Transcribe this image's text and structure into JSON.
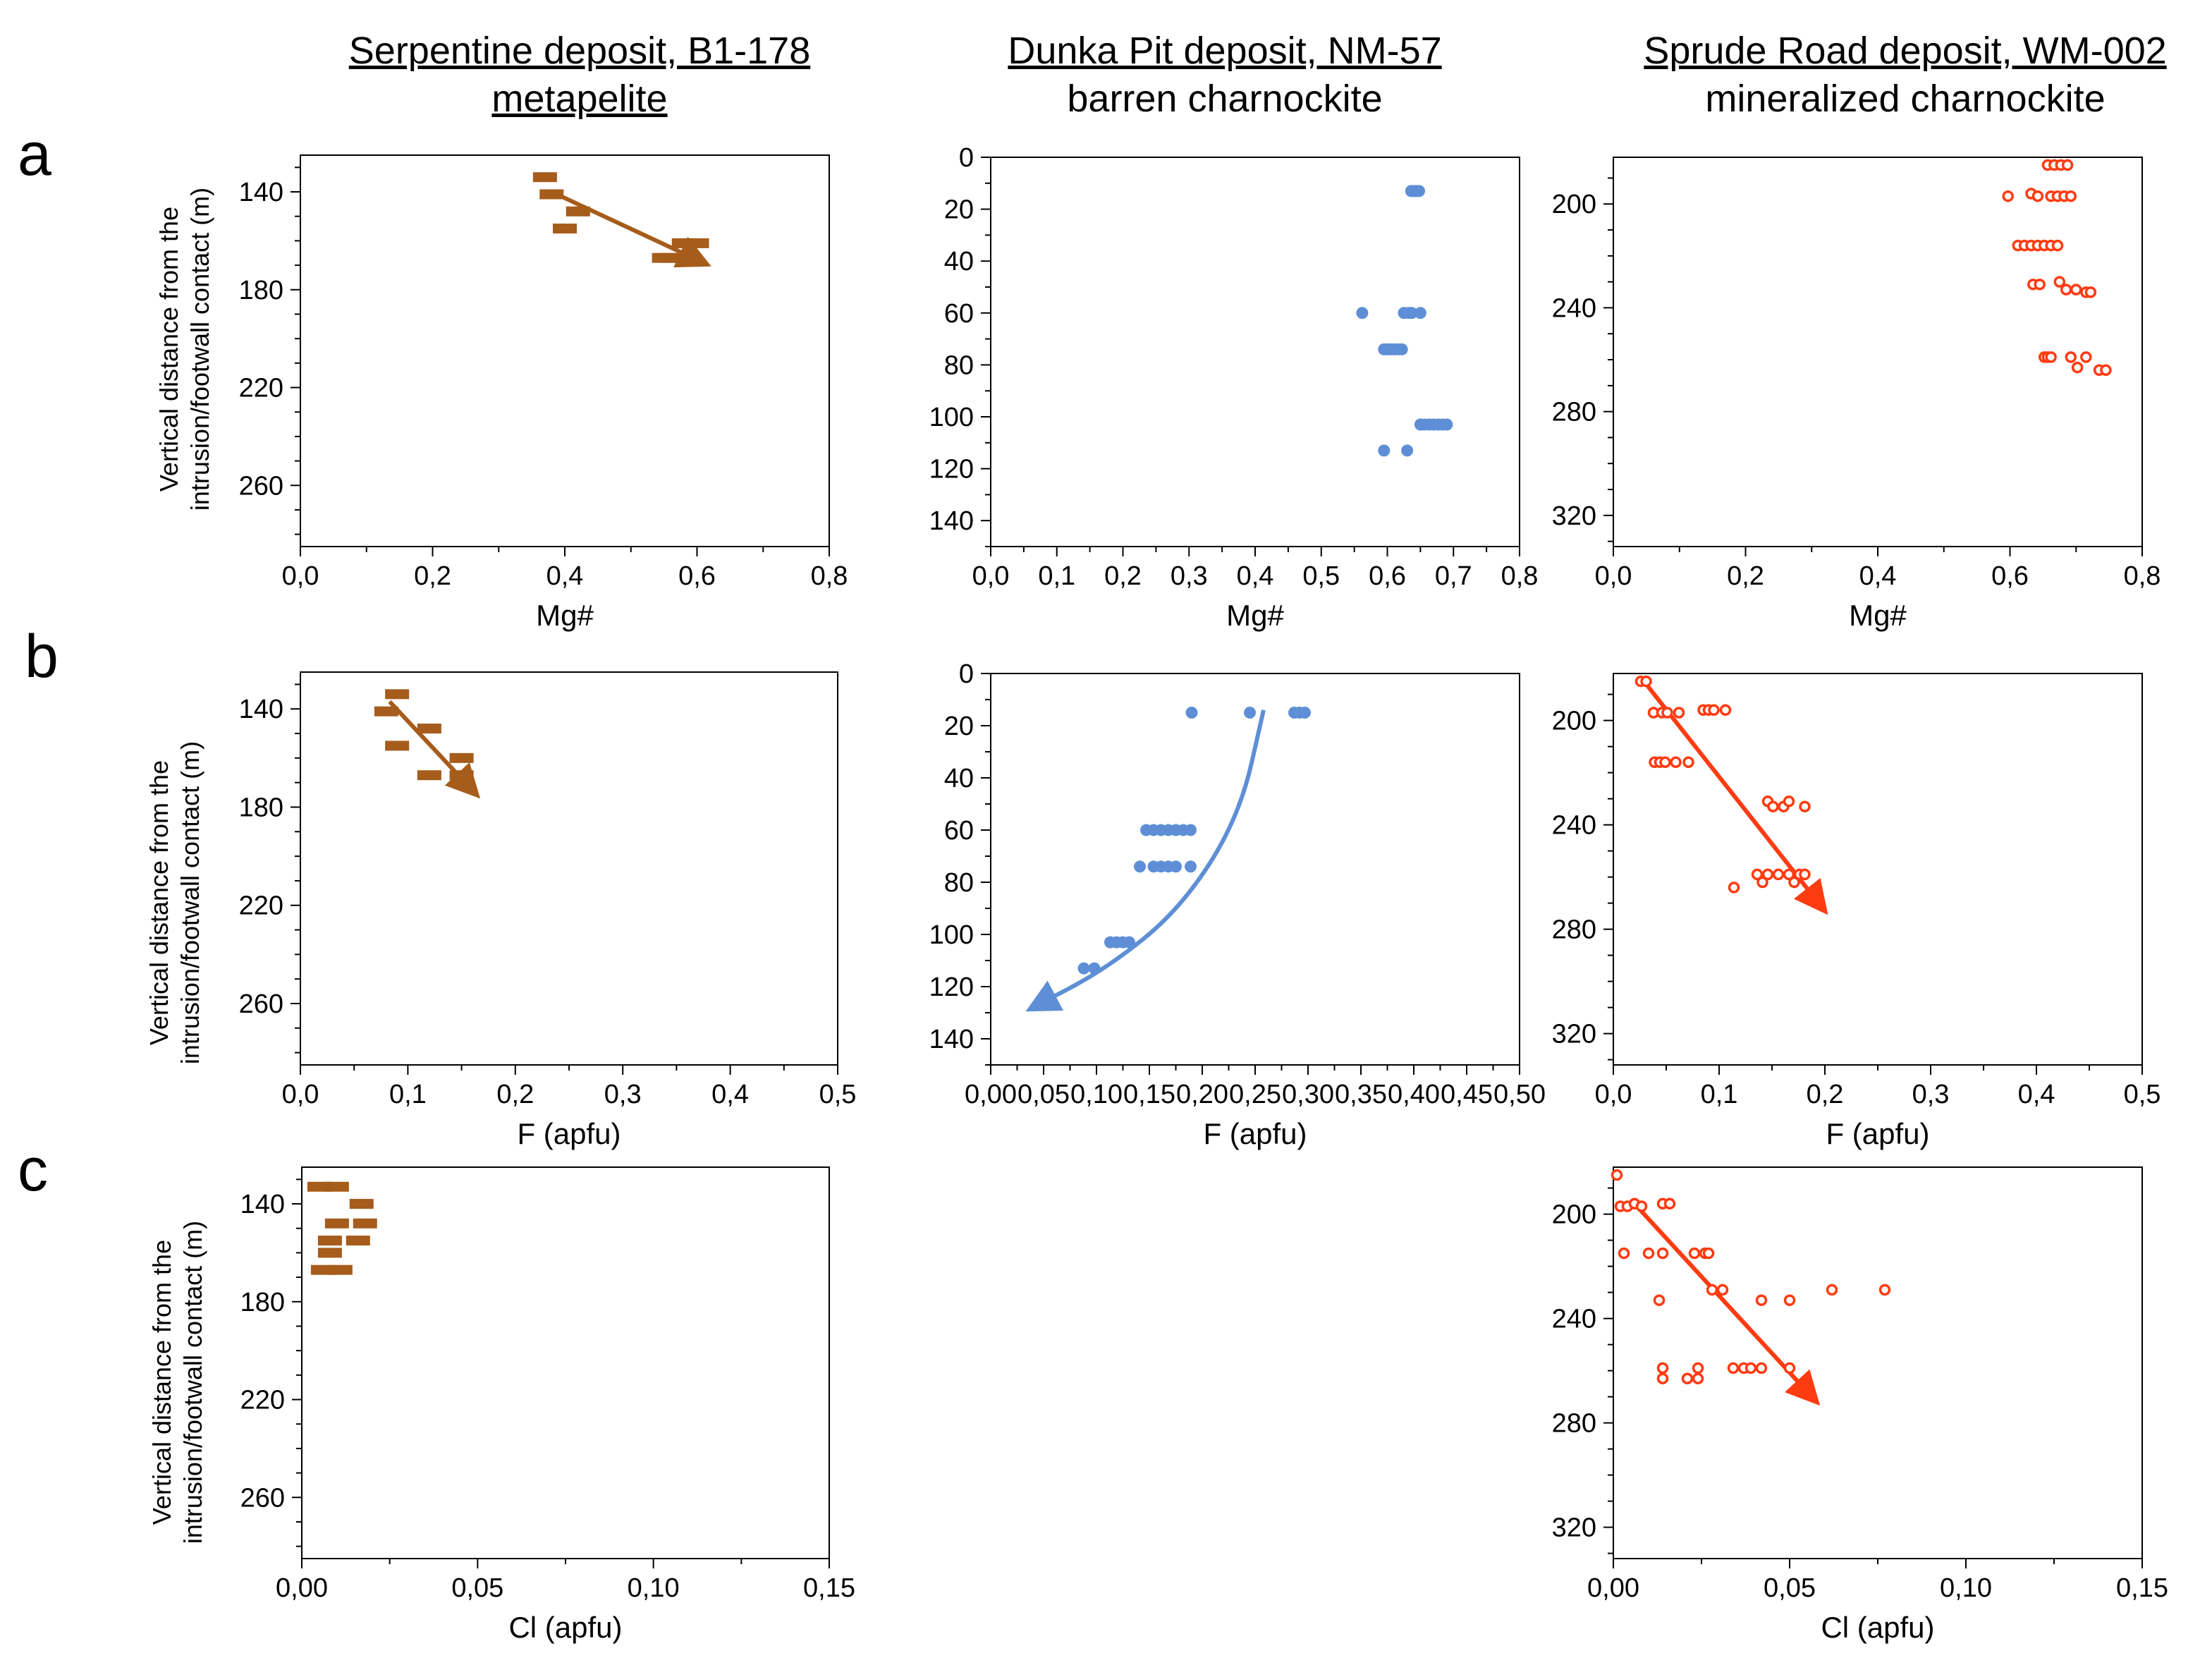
{
  "columns": [
    {
      "title": "Serpentine deposit, B1-178",
      "subtitle": "metapelite"
    },
    {
      "title": "Dunka Pit deposit, NM-57",
      "subtitle": "barren charnockite"
    },
    {
      "title": "Sprude Road deposit, WM-002",
      "subtitle": "mineralized charnockite"
    }
  ],
  "rows": [
    "a",
    "b",
    "c"
  ],
  "ylabel_line1": "Vertical distance from the",
  "ylabel_line2": "intrusion/footwall contact (m)",
  "colors": {
    "serpentine": "#a65c1a",
    "dunka": "#5e8fd6",
    "sprude": "#ff3b12"
  },
  "chart_data": [
    {
      "id": "a1",
      "type": "scatter",
      "marker": "bar",
      "color": "#a65c1a",
      "xlabel": "Mg#",
      "xlim": [
        0,
        0.8
      ],
      "ylim": [
        125,
        285
      ],
      "y_inverted": true,
      "xticks": [
        0,
        0.2,
        0.4,
        0.6,
        0.8
      ],
      "xticklabels": [
        "0,0",
        "0,2",
        "0,4",
        "0,6",
        "0,8"
      ],
      "yticks": [
        140,
        180,
        220,
        260
      ],
      "yticklabels": [
        "140",
        "180",
        "220",
        "260"
      ],
      "points": [
        [
          0.37,
          134
        ],
        [
          0.38,
          141
        ],
        [
          0.42,
          148
        ],
        [
          0.4,
          155
        ],
        [
          0.58,
          161
        ],
        [
          0.6,
          161
        ],
        [
          0.55,
          167
        ],
        [
          0.56,
          167
        ]
      ],
      "trend": {
        "kind": "arrow",
        "from": [
          0.38,
          140
        ],
        "to": [
          0.61,
          169
        ]
      }
    },
    {
      "id": "a2",
      "type": "scatter",
      "marker": "dot",
      "color": "#5e8fd6",
      "xlabel": "Mg#",
      "xlim": [
        0,
        0.8
      ],
      "ylim": [
        0,
        150
      ],
      "y_inverted": true,
      "xticks": [
        0,
        0.1,
        0.2,
        0.3,
        0.4,
        0.5,
        0.6,
        0.7,
        0.8
      ],
      "xticklabels": [
        "0,0",
        "0,1",
        "0,2",
        "0,3",
        "0,4",
        "0,5",
        "0,6",
        "0,7",
        "0,8"
      ],
      "yticks": [
        0,
        20,
        40,
        60,
        80,
        100,
        120,
        140
      ],
      "yticklabels": [
        "0",
        "20",
        "40",
        "60",
        "80",
        "100",
        "120",
        "140"
      ],
      "points": [
        [
          0.636,
          13
        ],
        [
          0.64,
          13
        ],
        [
          0.644,
          13
        ],
        [
          0.648,
          13
        ],
        [
          0.562,
          60
        ],
        [
          0.625,
          60
        ],
        [
          0.632,
          60
        ],
        [
          0.637,
          60
        ],
        [
          0.65,
          60
        ],
        [
          0.595,
          74
        ],
        [
          0.6,
          74
        ],
        [
          0.605,
          74
        ],
        [
          0.611,
          74
        ],
        [
          0.617,
          74
        ],
        [
          0.622,
          74
        ],
        [
          0.65,
          103
        ],
        [
          0.656,
          103
        ],
        [
          0.663,
          103
        ],
        [
          0.67,
          103
        ],
        [
          0.677,
          103
        ],
        [
          0.684,
          103
        ],
        [
          0.69,
          103
        ],
        [
          0.595,
          113
        ],
        [
          0.63,
          113
        ]
      ],
      "trend": null
    },
    {
      "id": "a3",
      "type": "scatter",
      "marker": "ring",
      "color": "#ff3b12",
      "xlabel": "Mg#",
      "xlim": [
        0,
        0.8
      ],
      "ylim": [
        182,
        332
      ],
      "y_inverted": true,
      "xticks": [
        0,
        0.2,
        0.4,
        0.6,
        0.8
      ],
      "xticklabels": [
        "0,0",
        "0,2",
        "0,4",
        "0,6",
        "0,8"
      ],
      "yticks": [
        200,
        240,
        280,
        320
      ],
      "yticklabels": [
        "200",
        "240",
        "280",
        "320"
      ],
      "points": [
        [
          0.657,
          185
        ],
        [
          0.667,
          185
        ],
        [
          0.677,
          185
        ],
        [
          0.687,
          185
        ],
        [
          0.597,
          197
        ],
        [
          0.632,
          196
        ],
        [
          0.642,
          197
        ],
        [
          0.662,
          197
        ],
        [
          0.672,
          197
        ],
        [
          0.682,
          197
        ],
        [
          0.692,
          197
        ],
        [
          0.612,
          216
        ],
        [
          0.622,
          216
        ],
        [
          0.632,
          216
        ],
        [
          0.642,
          216
        ],
        [
          0.652,
          216
        ],
        [
          0.662,
          216
        ],
        [
          0.672,
          216
        ],
        [
          0.635,
          231
        ],
        [
          0.645,
          231
        ],
        [
          0.675,
          230
        ],
        [
          0.685,
          233
        ],
        [
          0.7,
          233
        ],
        [
          0.715,
          234
        ],
        [
          0.722,
          234
        ],
        [
          0.652,
          259
        ],
        [
          0.657,
          259
        ],
        [
          0.662,
          259
        ],
        [
          0.692,
          259
        ],
        [
          0.702,
          263
        ],
        [
          0.715,
          259
        ],
        [
          0.735,
          264
        ],
        [
          0.745,
          264
        ]
      ],
      "trend": null
    },
    {
      "id": "b1",
      "type": "scatter",
      "marker": "bar",
      "color": "#a65c1a",
      "xlabel": "F (apfu)",
      "xlim": [
        0,
        0.5
      ],
      "ylim": [
        125,
        285
      ],
      "y_inverted": true,
      "xticks": [
        0,
        0.1,
        0.2,
        0.3,
        0.4,
        0.5
      ],
      "xticklabels": [
        "0,0",
        "0,1",
        "0,2",
        "0,3",
        "0,4",
        "0,5"
      ],
      "yticks": [
        140,
        180,
        220,
        260
      ],
      "yticklabels": [
        "140",
        "180",
        "220",
        "260"
      ],
      "points": [
        [
          0.09,
          134
        ],
        [
          0.08,
          141
        ],
        [
          0.12,
          148
        ],
        [
          0.09,
          155
        ],
        [
          0.15,
          160
        ],
        [
          0.12,
          167
        ],
        [
          0.15,
          167
        ]
      ],
      "trend": {
        "kind": "arrow",
        "from": [
          0.083,
          137
        ],
        "to": [
          0.162,
          174
        ]
      }
    },
    {
      "id": "b2",
      "type": "scatter",
      "marker": "dot",
      "color": "#5e8fd6",
      "xlabel": "F (apfu)",
      "xlim": [
        0,
        0.5
      ],
      "ylim": [
        0,
        150
      ],
      "y_inverted": true,
      "xticks": [
        0,
        0.05,
        0.1,
        0.15,
        0.2,
        0.25,
        0.3,
        0.35,
        0.4,
        0.45,
        0.5
      ],
      "xticklabels": [
        "0,00",
        "0,05",
        "0,10",
        "0,15",
        "0,20",
        "0,25",
        "0,30",
        "0,35",
        "0,40",
        "0,45",
        "0,50"
      ],
      "yticks": [
        0,
        20,
        40,
        60,
        80,
        100,
        120,
        140
      ],
      "yticklabels": [
        "0",
        "20",
        "40",
        "60",
        "80",
        "100",
        "120",
        "140"
      ],
      "points": [
        [
          0.19,
          15
        ],
        [
          0.245,
          15
        ],
        [
          0.287,
          15
        ],
        [
          0.292,
          15
        ],
        [
          0.297,
          15
        ],
        [
          0.147,
          60
        ],
        [
          0.154,
          60
        ],
        [
          0.161,
          60
        ],
        [
          0.168,
          60
        ],
        [
          0.175,
          60
        ],
        [
          0.182,
          60
        ],
        [
          0.189,
          60
        ],
        [
          0.141,
          74
        ],
        [
          0.154,
          74
        ],
        [
          0.161,
          74
        ],
        [
          0.168,
          74
        ],
        [
          0.175,
          74
        ],
        [
          0.189,
          74
        ],
        [
          0.113,
          103
        ],
        [
          0.119,
          103
        ],
        [
          0.125,
          103
        ],
        [
          0.131,
          103
        ],
        [
          0.088,
          113
        ],
        [
          0.098,
          113
        ]
      ],
      "trend": {
        "kind": "curve",
        "points": [
          [
            0.258,
            14
          ],
          [
            0.235,
            55
          ],
          [
            0.18,
            90
          ],
          [
            0.11,
            113
          ],
          [
            0.04,
            128
          ]
        ]
      }
    },
    {
      "id": "b3",
      "type": "scatter",
      "marker": "ring",
      "color": "#ff3b12",
      "xlabel": "F (apfu)",
      "xlim": [
        0,
        0.5
      ],
      "ylim": [
        182,
        332
      ],
      "y_inverted": true,
      "xticks": [
        0,
        0.1,
        0.2,
        0.3,
        0.4,
        0.5
      ],
      "xticklabels": [
        "0,0",
        "0,1",
        "0,2",
        "0,3",
        "0,4",
        "0,5"
      ],
      "yticks": [
        200,
        240,
        280,
        320
      ],
      "yticklabels": [
        "200",
        "240",
        "280",
        "320"
      ],
      "points": [
        [
          0.026,
          185
        ],
        [
          0.031,
          185
        ],
        [
          0.038,
          197
        ],
        [
          0.046,
          197
        ],
        [
          0.051,
          197
        ],
        [
          0.062,
          197
        ],
        [
          0.085,
          196
        ],
        [
          0.09,
          196
        ],
        [
          0.095,
          196
        ],
        [
          0.106,
          196
        ],
        [
          0.039,
          216
        ],
        [
          0.044,
          216
        ],
        [
          0.049,
          216
        ],
        [
          0.059,
          216
        ],
        [
          0.071,
          216
        ],
        [
          0.146,
          231
        ],
        [
          0.151,
          233
        ],
        [
          0.161,
          233
        ],
        [
          0.166,
          231
        ],
        [
          0.181,
          233
        ],
        [
          0.114,
          264
        ],
        [
          0.136,
          259
        ],
        [
          0.141,
          262
        ],
        [
          0.146,
          259
        ],
        [
          0.156,
          259
        ],
        [
          0.166,
          259
        ],
        [
          0.171,
          262
        ],
        [
          0.176,
          259
        ],
        [
          0.181,
          259
        ]
      ],
      "trend": {
        "kind": "arrow",
        "from": [
          0.027,
          184
        ],
        "to": [
          0.198,
          272
        ]
      }
    },
    {
      "id": "c1",
      "type": "scatter",
      "marker": "bar",
      "color": "#a65c1a",
      "xlabel": "Cl (apfu)",
      "xlim": [
        0,
        0.15
      ],
      "ylim": [
        125,
        285
      ],
      "y_inverted": true,
      "xticks": [
        0,
        0.05,
        0.1,
        0.15
      ],
      "xticklabels": [
        "0,00",
        "0,05",
        "0,10",
        "0,15"
      ],
      "yticks": [
        140,
        180,
        220,
        260
      ],
      "yticklabels": [
        "140",
        "180",
        "220",
        "260"
      ],
      "points": [
        [
          0.005,
          133
        ],
        [
          0.01,
          133
        ],
        [
          0.017,
          140
        ],
        [
          0.01,
          148
        ],
        [
          0.018,
          148
        ],
        [
          0.008,
          155
        ],
        [
          0.016,
          155
        ],
        [
          0.008,
          160
        ],
        [
          0.006,
          167
        ],
        [
          0.011,
          167
        ]
      ],
      "trend": null
    },
    {
      "id": "c3",
      "type": "scatter",
      "marker": "ring",
      "color": "#ff3b12",
      "xlabel": "Cl (apfu)",
      "xlim": [
        0,
        0.15
      ],
      "ylim": [
        182,
        332
      ],
      "y_inverted": true,
      "xticks": [
        0,
        0.05,
        0.1,
        0.15
      ],
      "xticklabels": [
        "0,00",
        "0,05",
        "0,10",
        "0,15"
      ],
      "yticks": [
        200,
        240,
        280,
        320
      ],
      "yticklabels": [
        "200",
        "240",
        "280",
        "320"
      ],
      "points": [
        [
          0.001,
          185
        ],
        [
          0.002,
          197
        ],
        [
          0.004,
          197
        ],
        [
          0.006,
          196
        ],
        [
          0.008,
          197
        ],
        [
          0.014,
          196
        ],
        [
          0.016,
          196
        ],
        [
          0.003,
          215
        ],
        [
          0.01,
          215
        ],
        [
          0.014,
          215
        ],
        [
          0.023,
          215
        ],
        [
          0.026,
          215
        ],
        [
          0.027,
          215
        ],
        [
          0.028,
          229
        ],
        [
          0.031,
          229
        ],
        [
          0.013,
          233
        ],
        [
          0.042,
          233
        ],
        [
          0.05,
          233
        ],
        [
          0.062,
          229
        ],
        [
          0.077,
          229
        ],
        [
          0.014,
          259
        ],
        [
          0.024,
          259
        ],
        [
          0.034,
          259
        ],
        [
          0.037,
          259
        ],
        [
          0.039,
          259
        ],
        [
          0.042,
          259
        ],
        [
          0.05,
          259
        ],
        [
          0.014,
          263
        ],
        [
          0.021,
          263
        ],
        [
          0.024,
          263
        ]
      ],
      "trend": {
        "kind": "arrow",
        "from": [
          0.006,
          196
        ],
        "to": [
          0.057,
          271
        ]
      }
    }
  ]
}
